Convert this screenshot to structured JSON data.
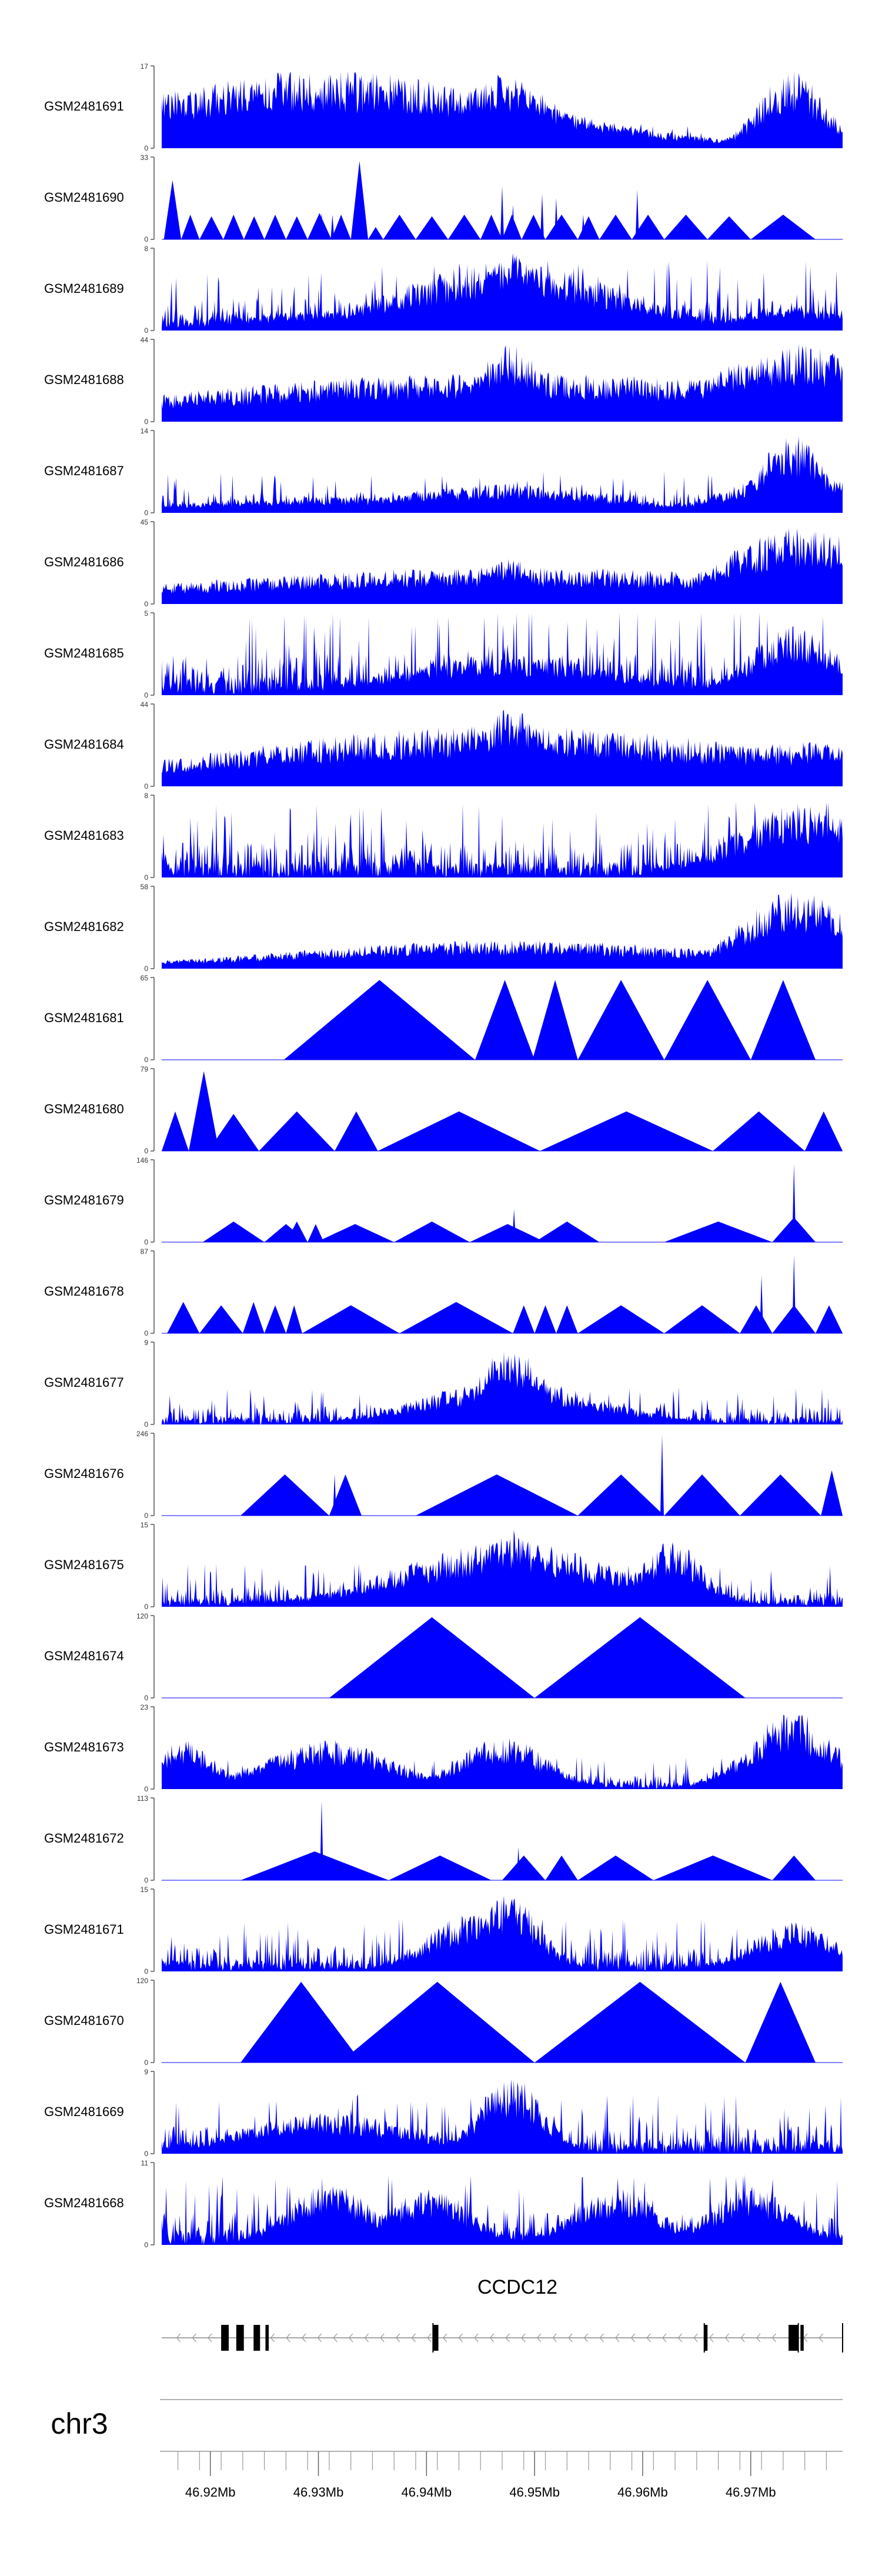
{
  "chart_data": {
    "type": "area",
    "genome": {
      "chromosome": "chr3",
      "axis_ticks": [
        "46.92Mb",
        "46.93Mb",
        "46.94Mb",
        "46.95Mb",
        "46.96Mb",
        "46.97Mb"
      ],
      "tick_values_mb": [
        46.92,
        46.93,
        46.94,
        46.95,
        46.96,
        46.97
      ],
      "xlim_mb": [
        46.9155,
        46.9785
      ]
    },
    "gene": {
      "name": "CCDC12",
      "strand": "-",
      "start_mb": 46.9155,
      "end_mb": 46.9785,
      "exons_mb": [
        [
          46.921,
          46.9217
        ],
        [
          46.9224,
          46.9231
        ],
        [
          46.924,
          46.9246
        ],
        [
          46.9251,
          46.9254
        ],
        [
          46.9406,
          46.9411
        ],
        [
          46.9657,
          46.966
        ],
        [
          46.9735,
          46.9744
        ],
        [
          46.9746,
          46.9749
        ]
      ]
    },
    "tracks": [
      {
        "name": "GSM2481691",
        "ymax": 17,
        "style": "dense",
        "seed": 11,
        "base": 0.12,
        "peaks": [
          [
            46.9307,
            0.018,
            0.95
          ],
          [
            46.947,
            0.004,
            0.9
          ],
          [
            46.949,
            0.004,
            0.75
          ],
          [
            46.947,
            0.01,
            0.45
          ],
          [
            46.9422,
            0.004,
            0.3
          ],
          [
            46.9738,
            0.003,
            0.95
          ],
          [
            46.9236,
            0.005,
            0.3
          ],
          [
            46.9556,
            0.005,
            0.25
          ]
        ]
      },
      {
        "name": "GSM2481690",
        "ymax": 33,
        "style": "tri",
        "seed": 12,
        "segments": [
          [
            46.9157,
            46.9173,
            0.72
          ],
          [
            46.9173,
            46.919,
            0.3
          ],
          [
            46.919,
            46.9212,
            0.28
          ],
          [
            46.9212,
            46.9231,
            0.3
          ],
          [
            46.9231,
            46.925,
            0.28
          ],
          [
            46.925,
            46.927,
            0.3
          ],
          [
            46.927,
            46.929,
            0.28
          ],
          [
            46.929,
            46.9312,
            0.32
          ],
          [
            46.9312,
            46.933,
            0.3
          ],
          [
            46.933,
            46.9346,
            0.95
          ],
          [
            46.9346,
            46.936,
            0.15
          ],
          [
            46.936,
            46.939,
            0.3
          ],
          [
            46.939,
            46.942,
            0.28
          ],
          [
            46.942,
            46.945,
            0.3
          ],
          [
            46.945,
            46.947,
            0.3
          ],
          [
            46.947,
            46.9488,
            0.3
          ],
          [
            46.9488,
            46.951,
            0.3
          ],
          [
            46.951,
            46.954,
            0.3
          ],
          [
            46.954,
            46.956,
            0.28
          ],
          [
            46.956,
            46.959,
            0.3
          ],
          [
            46.959,
            46.962,
            0.3
          ],
          [
            46.962,
            46.966,
            0.3
          ],
          [
            46.966,
            46.97,
            0.28
          ],
          [
            46.97,
            46.976,
            0.3
          ]
        ],
        "spikes": [
          [
            46.9303,
            0.32
          ],
          [
            46.9313,
            0.3
          ],
          [
            46.947,
            0.65
          ],
          [
            46.948,
            0.42
          ],
          [
            46.9507,
            0.55
          ],
          [
            46.952,
            0.5
          ],
          [
            46.9595,
            0.6
          ],
          [
            46.9545,
            0.3
          ]
        ]
      },
      {
        "name": "GSM2481689",
        "ymax": 8,
        "style": "dense",
        "seed": 13,
        "base": 0.33,
        "peaks": [
          [
            46.9475,
            0.01,
            0.85
          ],
          [
            46.948,
            0.003,
            0.95
          ],
          [
            46.931,
            0.008,
            0.25
          ],
          [
            46.974,
            0.005,
            0.3
          ]
        ]
      },
      {
        "name": "GSM2481688",
        "ymax": 44,
        "style": "dense",
        "seed": 14,
        "base": 0.035,
        "peaks": [
          [
            46.9475,
            0.03,
            0.6
          ],
          [
            46.9478,
            0.003,
            0.95
          ],
          [
            46.931,
            0.02,
            0.15
          ],
          [
            46.9745,
            0.008,
            0.95
          ],
          [
            46.9778,
            0.003,
            0.55
          ]
        ]
      },
      {
        "name": "GSM2481687",
        "ymax": 14,
        "style": "dense",
        "seed": 15,
        "base": 0.2,
        "peaks": [
          [
            46.9738,
            0.003,
            0.95
          ],
          [
            46.974,
            0.006,
            0.5
          ],
          [
            46.947,
            0.01,
            0.35
          ],
          [
            46.932,
            0.015,
            0.2
          ]
        ]
      },
      {
        "name": "GSM2481686",
        "ymax": 45,
        "style": "dense",
        "seed": 16,
        "base": 0.035,
        "peaks": [
          [
            46.9475,
            0.03,
            0.45
          ],
          [
            46.9478,
            0.003,
            0.55
          ],
          [
            46.931,
            0.02,
            0.12
          ],
          [
            46.9745,
            0.007,
            0.95
          ],
          [
            46.9778,
            0.003,
            0.35
          ]
        ]
      },
      {
        "name": "GSM2481685",
        "ymax": 5,
        "style": "dense",
        "seed": 17,
        "base": 0.42,
        "peaks": [
          [
            46.9475,
            0.01,
            0.5
          ],
          [
            46.974,
            0.004,
            0.85
          ]
        ]
      },
      {
        "name": "GSM2481684",
        "ymax": 44,
        "style": "dense",
        "seed": 18,
        "base": 0.035,
        "peaks": [
          [
            46.9475,
            0.025,
            0.75
          ],
          [
            46.9478,
            0.003,
            0.95
          ],
          [
            46.931,
            0.01,
            0.28
          ],
          [
            46.9745,
            0.008,
            0.55
          ],
          [
            46.9778,
            0.003,
            0.5
          ]
        ]
      },
      {
        "name": "GSM2481683",
        "ymax": 8,
        "style": "dense",
        "seed": 19,
        "base": 0.36,
        "peaks": [
          [
            46.9745,
            0.006,
            0.9
          ],
          [
            46.977,
            0.005,
            0.55
          ]
        ]
      },
      {
        "name": "GSM2481682",
        "ymax": 58,
        "style": "dense",
        "seed": 20,
        "base": 0.025,
        "peaks": [
          [
            46.9475,
            0.02,
            0.35
          ],
          [
            46.931,
            0.02,
            0.12
          ],
          [
            46.9742,
            0.005,
            0.95
          ],
          [
            46.9778,
            0.003,
            0.3
          ]
        ]
      },
      {
        "name": "GSM2481681",
        "ymax": 65,
        "style": "tri",
        "seed": 21,
        "segments": [
          [
            46.9268,
            46.9445,
            0.97
          ],
          [
            46.9445,
            46.95,
            0.97
          ],
          [
            46.9498,
            46.954,
            0.97
          ],
          [
            46.954,
            46.962,
            0.97
          ],
          [
            46.962,
            46.97,
            0.97
          ],
          [
            46.97,
            46.976,
            0.97
          ]
        ]
      },
      {
        "name": "GSM2481680",
        "ymax": 79,
        "style": "tri",
        "seed": 22,
        "segments": [
          [
            46.9155,
            46.918,
            0.48
          ],
          [
            46.918,
            46.9208,
            0.97
          ],
          [
            46.9198,
            46.9245,
            0.45
          ],
          [
            46.9245,
            46.9315,
            0.48
          ],
          [
            46.9315,
            46.9355,
            0.48
          ],
          [
            46.9355,
            46.9505,
            0.48
          ],
          [
            46.9505,
            46.9665,
            0.48
          ],
          [
            46.9665,
            46.975,
            0.48
          ],
          [
            46.975,
            46.9785,
            0.48
          ]
        ]
      },
      {
        "name": "GSM2481679",
        "ymax": 146,
        "style": "tri",
        "seed": 23,
        "segments": [
          [
            46.9193,
            46.925,
            0.25
          ],
          [
            46.925,
            46.929,
            0.22
          ],
          [
            46.927,
            46.929,
            0.25
          ],
          [
            46.929,
            46.9305,
            0.22
          ],
          [
            46.9298,
            46.937,
            0.22
          ],
          [
            46.937,
            46.944,
            0.25
          ],
          [
            46.944,
            46.951,
            0.22
          ],
          [
            46.95,
            46.956,
            0.25
          ],
          [
            46.962,
            46.972,
            0.25
          ],
          [
            46.972,
            46.976,
            0.3
          ]
        ],
        "spikes": [
          [
            46.974,
            0.95
          ],
          [
            46.9481,
            0.4
          ]
        ]
      },
      {
        "name": "GSM2481678",
        "ymax": 87,
        "style": "tri",
        "seed": 24,
        "segments": [
          [
            46.916,
            46.919,
            0.38
          ],
          [
            46.919,
            46.923,
            0.34
          ],
          [
            46.923,
            46.925,
            0.38
          ],
          [
            46.925,
            46.927,
            0.34
          ],
          [
            46.927,
            46.9285,
            0.34
          ],
          [
            46.9285,
            46.9375,
            0.34
          ],
          [
            46.9375,
            46.948,
            0.38
          ],
          [
            46.948,
            46.95,
            0.34
          ],
          [
            46.95,
            46.952,
            0.34
          ],
          [
            46.952,
            46.954,
            0.34
          ],
          [
            46.954,
            46.962,
            0.34
          ],
          [
            46.962,
            46.969,
            0.34
          ],
          [
            46.969,
            46.972,
            0.34
          ],
          [
            46.972,
            46.976,
            0.34
          ],
          [
            46.976,
            46.9785,
            0.34
          ]
        ],
        "spikes": [
          [
            46.971,
            0.7
          ],
          [
            46.974,
            0.95
          ]
        ]
      },
      {
        "name": "GSM2481677",
        "ymax": 9,
        "style": "dense",
        "seed": 25,
        "base": 0.18,
        "peaks": [
          [
            46.9478,
            0.003,
            0.95
          ],
          [
            46.9478,
            0.008,
            0.55
          ]
        ]
      },
      {
        "name": "GSM2481676",
        "ymax": 246,
        "style": "tri",
        "seed": 26,
        "segments": [
          [
            46.9228,
            46.931,
            0.5
          ],
          [
            46.931,
            46.934,
            0.5
          ],
          [
            46.939,
            46.954,
            0.5
          ],
          [
            46.954,
            46.962,
            0.5
          ],
          [
            46.962,
            46.969,
            0.5
          ],
          [
            46.969,
            46.9765,
            0.5
          ],
          [
            46.9765,
            46.9785,
            0.55
          ]
        ],
        "spikes": [
          [
            46.9618,
            0.98
          ],
          [
            46.9315,
            0.5
          ],
          [
            46.9325,
            0.5
          ]
        ]
      },
      {
        "name": "GSM2481675",
        "ymax": 15,
        "style": "dense",
        "seed": 27,
        "base": 0.2,
        "peaks": [
          [
            46.9475,
            0.01,
            0.8
          ],
          [
            46.9477,
            0.003,
            0.95
          ],
          [
            46.9627,
            0.003,
            0.8
          ],
          [
            46.961,
            0.003,
            0.5
          ]
        ]
      },
      {
        "name": "GSM2481674",
        "ymax": 120,
        "style": "tri",
        "seed": 27,
        "segments": [
          [
            46.931,
            46.95,
            0.98
          ],
          [
            46.95,
            46.9695,
            0.98
          ]
        ]
      },
      {
        "name": "GSM2481673",
        "ymax": 23,
        "style": "dense",
        "seed": 28,
        "base": 0.15,
        "peaks": [
          [
            46.9738,
            0.004,
            0.95
          ],
          [
            46.931,
            0.006,
            0.6
          ],
          [
            46.947,
            0.004,
            0.65
          ],
          [
            46.9175,
            0.003,
            0.6
          ]
        ]
      },
      {
        "name": "GSM2481672",
        "ymax": 113,
        "style": "tri",
        "seed": 29,
        "segments": [
          [
            46.9228,
            46.9365,
            0.35
          ],
          [
            46.9365,
            46.946,
            0.3
          ],
          [
            46.947,
            46.951,
            0.3
          ],
          [
            46.951,
            46.954,
            0.3
          ],
          [
            46.954,
            46.961,
            0.3
          ],
          [
            46.961,
            46.972,
            0.3
          ],
          [
            46.972,
            46.976,
            0.3
          ]
        ],
        "spikes": [
          [
            46.9303,
            0.97
          ],
          [
            46.9485,
            0.4
          ]
        ]
      },
      {
        "name": "GSM2481671",
        "ymax": 15,
        "style": "dense",
        "seed": 30,
        "base": 0.25,
        "peaks": [
          [
            46.9475,
            0.003,
            0.95
          ],
          [
            46.944,
            0.004,
            0.7
          ],
          [
            46.974,
            0.004,
            0.6
          ]
        ]
      },
      {
        "name": "GSM2481670",
        "ymax": 120,
        "style": "tri",
        "seed": 31,
        "segments": [
          [
            46.9228,
            46.934,
            0.98
          ],
          [
            46.932,
            46.95,
            0.98
          ],
          [
            46.95,
            46.9695,
            0.98
          ],
          [
            46.9695,
            46.976,
            0.98
          ]
        ]
      },
      {
        "name": "GSM2481669",
        "ymax": 9,
        "style": "dense",
        "seed": 32,
        "base": 0.28,
        "peaks": [
          [
            46.9478,
            0.003,
            0.95
          ],
          [
            46.931,
            0.008,
            0.5
          ]
        ]
      },
      {
        "name": "GSM2481668",
        "ymax": 11,
        "style": "dense",
        "seed": 33,
        "base": 0.33,
        "peaks": [
          [
            46.931,
            0.004,
            0.75
          ],
          [
            46.94,
            0.004,
            0.7
          ],
          [
            46.9575,
            0.004,
            0.7
          ],
          [
            46.97,
            0.004,
            0.7
          ]
        ]
      }
    ]
  }
}
